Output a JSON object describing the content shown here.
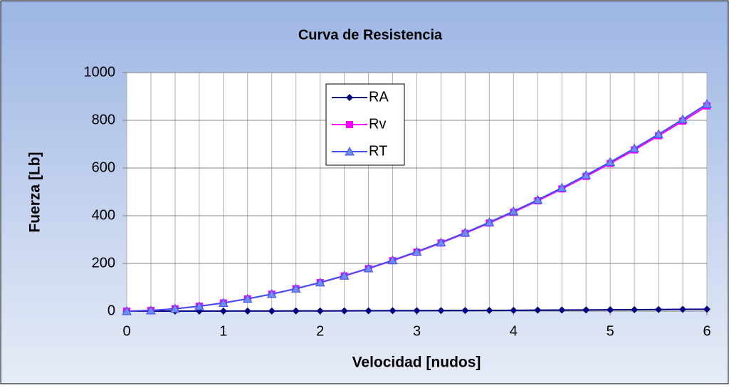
{
  "chart_data": {
    "type": "line",
    "title": "Curva de Resistencia",
    "xlabel": "Velocidad [nudos]",
    "ylabel": "Fuerza [Lb]",
    "x": [
      0,
      0.25,
      0.5,
      0.75,
      1,
      1.25,
      1.5,
      1.75,
      2,
      2.25,
      2.5,
      2.75,
      3,
      3.25,
      3.5,
      3.75,
      4,
      4.25,
      4.5,
      4.75,
      5,
      5.25,
      5.5,
      5.75,
      6
    ],
    "series": [
      {
        "name": "RA",
        "color": "#000080",
        "marker": "diamond",
        "values": [
          0,
          0.01,
          0.06,
          0.12,
          0.22,
          0.34,
          0.5,
          0.67,
          0.88,
          1.1,
          1.4,
          1.7,
          2,
          2.3,
          2.7,
          3.1,
          3.5,
          4,
          4.5,
          5,
          5.5,
          6.1,
          6.7,
          7.3,
          7.9
        ]
      },
      {
        "name": "Rv",
        "color": "#ff00ff",
        "marker": "square",
        "values": [
          0,
          2.8,
          9.8,
          20.5,
          34.3,
          51.3,
          71.1,
          93.8,
          119.2,
          147.4,
          178.1,
          211.4,
          247.3,
          285.6,
          326.3,
          369.4,
          414.9,
          462.5,
          512.5,
          565,
          619.5,
          675.9,
          735.3,
          796.7,
          860.1
        ]
      },
      {
        "name": "RT",
        "color": "#4050f0",
        "marker": "triangle",
        "values": [
          0,
          2.8,
          9.9,
          20.6,
          34.5,
          51.6,
          71.6,
          94.5,
          120.1,
          148.5,
          179.5,
          213.1,
          249.3,
          287.9,
          329,
          372.5,
          418.4,
          466.5,
          517,
          570,
          625,
          682,
          742,
          804,
          868
        ]
      }
    ],
    "xlim": [
      0,
      6
    ],
    "xticks": [
      0,
      1,
      2,
      3,
      4,
      5,
      6
    ],
    "ylim": [
      0,
      1000
    ],
    "yticks": [
      0,
      200,
      400,
      600,
      800,
      1000
    ],
    "grid": true,
    "legend": "top-center"
  }
}
